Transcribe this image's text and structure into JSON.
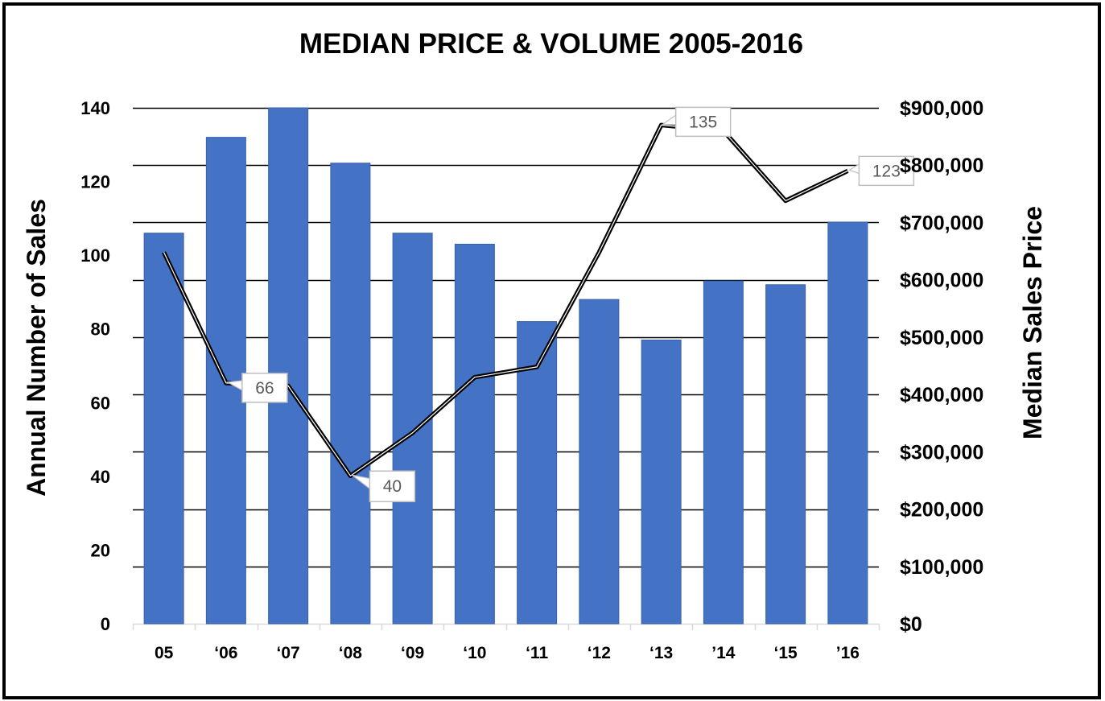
{
  "chart_data": {
    "type": "bar",
    "title": "MEDIAN PRICE & VOLUME 2005-2016",
    "xlabel": "",
    "ylabel": "Annual Number of Sales",
    "y2label": "Median Sales Price",
    "categories": [
      "05",
      "‘06",
      "‘07",
      "‘08",
      "‘09",
      "‘10",
      "‘11",
      "‘12",
      "‘13",
      "’14",
      "‘15",
      "’16"
    ],
    "ylim": [
      0,
      140
    ],
    "y_ticks": [
      "0",
      "20",
      "40",
      "60",
      "80",
      "100",
      "120",
      "140"
    ],
    "y2lim": [
      0,
      900000
    ],
    "y2_ticks": [
      "$0",
      "$100,000",
      "$200,000",
      "$300,000",
      "$400,000",
      "$500,000",
      "$600,000",
      "$700,000",
      "$800,000",
      "$900,000"
    ],
    "grid": true,
    "series": [
      {
        "type": "bar",
        "axis": "left",
        "color": "#4472C4",
        "values": [
          106,
          132,
          140,
          125,
          106,
          103,
          82,
          88,
          77,
          93,
          92,
          109
        ]
      },
      {
        "type": "line",
        "axis": "right",
        "color": "#000000",
        "values": [
          648000,
          420000,
          415000,
          258000,
          333000,
          430000,
          448000,
          648000,
          870000,
          860000,
          738000,
          790000
        ]
      }
    ],
    "annotations": [
      {
        "category_index": 1,
        "text": "66"
      },
      {
        "category_index": 3,
        "text": "40"
      },
      {
        "category_index": 8,
        "text": "135"
      },
      {
        "category_index": 11,
        "text": "123"
      }
    ]
  }
}
